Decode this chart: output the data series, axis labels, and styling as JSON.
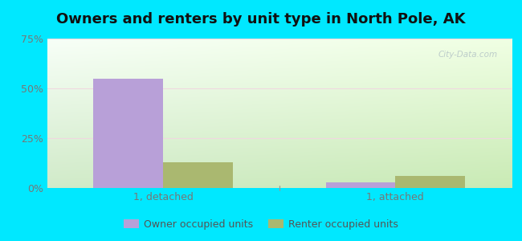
{
  "title": "Owners and renters by unit type in North Pole, AK",
  "categories": [
    "1, detached",
    "1, attached"
  ],
  "owner_values": [
    55.0,
    3.0
  ],
  "renter_values": [
    13.0,
    6.0
  ],
  "owner_color": "#b8a0d8",
  "renter_color": "#aab870",
  "ylim": [
    0,
    75
  ],
  "yticks": [
    0,
    25,
    50,
    75
  ],
  "ytick_labels": [
    "0%",
    "25%",
    "50%",
    "75%"
  ],
  "legend_owner": "Owner occupied units",
  "legend_renter": "Renter occupied units",
  "background_outer": "#00e8ff",
  "title_fontsize": 13,
  "bar_width": 0.3,
  "watermark": "City-Data.com"
}
